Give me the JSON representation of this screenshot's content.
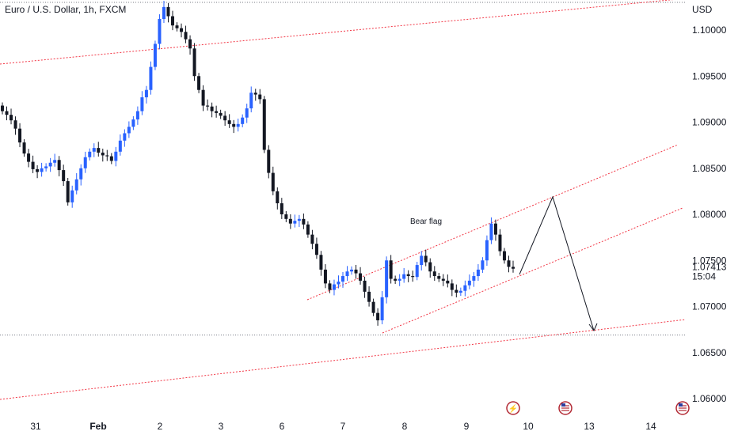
{
  "header": {
    "title": "Euro / U.S. Dollar, 1h, FXCM",
    "currency": "USD"
  },
  "chart_data": {
    "type": "candlestick",
    "title": "Euro / U.S. Dollar, 1h, FXCM",
    "ylabel": "USD",
    "ylim": [
      1.0585,
      1.1032
    ],
    "y_ticks": [
      "1.10000",
      "1.09500",
      "1.09000",
      "1.08500",
      "1.08000",
      "1.07500",
      "1.07000",
      "1.06500",
      "1.06000"
    ],
    "y_tick_values": [
      1.1,
      1.095,
      1.09,
      1.085,
      1.08,
      1.075,
      1.07,
      1.065,
      1.06
    ],
    "x_ticks": [
      "31",
      "Feb",
      "2",
      "3",
      "6",
      "7",
      "8",
      "9",
      "10",
      "13",
      "14"
    ],
    "current_price": "1.07413",
    "countdown": "15:04",
    "annotation": "Bear flag",
    "up_color": "#2962ff",
    "down_color": "#131722",
    "trendline_color": "#f23645",
    "series": [
      {
        "name": "price_path",
        "values": [
          1.0912,
          1.0908,
          1.0902,
          1.0893,
          1.0878,
          1.0866,
          1.0857,
          1.0849,
          1.0846,
          1.085,
          1.0852,
          1.0856,
          1.0859,
          1.0848,
          1.0836,
          1.0813,
          1.0826,
          1.0838,
          1.085,
          1.0862,
          1.0868,
          1.0872,
          1.0867,
          1.0864,
          1.0863,
          1.0858,
          1.0868,
          1.088,
          1.0888,
          1.0895,
          1.0903,
          1.0912,
          1.0927,
          1.0935,
          1.096,
          1.0985,
          1.1012,
          1.1025,
          1.1015,
          1.1005,
          1.1002,
          1.0998,
          1.099,
          1.098,
          1.095,
          1.0935,
          1.0918,
          1.0917,
          1.0912,
          1.091,
          1.0907,
          1.0902,
          1.0898,
          1.0895,
          1.0898,
          1.0905,
          1.0915,
          1.0932,
          1.093,
          1.0925,
          1.087,
          1.0845,
          1.0825,
          1.0812,
          1.08,
          1.0795,
          1.079,
          1.0793,
          1.0795,
          1.0789,
          1.0778,
          1.0768,
          1.0756,
          1.074,
          1.0725,
          1.0718,
          1.0724,
          1.0727,
          1.0733,
          1.0738,
          1.074,
          1.0736,
          1.0728,
          1.0716,
          1.0705,
          1.0693,
          1.0685,
          1.071,
          1.075,
          1.073,
          1.0728,
          1.073,
          1.0735,
          1.0733,
          1.0732,
          1.0745,
          1.0755,
          1.0748,
          1.0738,
          1.0733,
          1.073,
          1.0728,
          1.0725,
          1.0718,
          1.0715,
          1.0717,
          1.0723,
          1.0728,
          1.0733,
          1.074,
          1.075,
          1.0772,
          1.079,
          1.0778,
          1.076,
          1.075,
          1.0743,
          1.0741
        ]
      }
    ],
    "trendlines": [
      {
        "name": "upper_channel",
        "points": [
          [
            "31",
            1.0963
          ],
          [
            "14",
            1.105
          ]
        ]
      },
      {
        "name": "lower_channel",
        "points": [
          [
            "31",
            1.06
          ],
          [
            "14",
            1.0685
          ]
        ]
      },
      {
        "name": "flag_top",
        "points": [
          [
            "6",
            1.0712
          ],
          [
            "14",
            1.0873
          ]
        ]
      },
      {
        "name": "flag_bottom",
        "points": [
          [
            "7",
            1.0693
          ],
          [
            "14",
            1.0805
          ]
        ]
      }
    ],
    "horizontal_levels": [
      1.0669,
      1.103
    ]
  }
}
